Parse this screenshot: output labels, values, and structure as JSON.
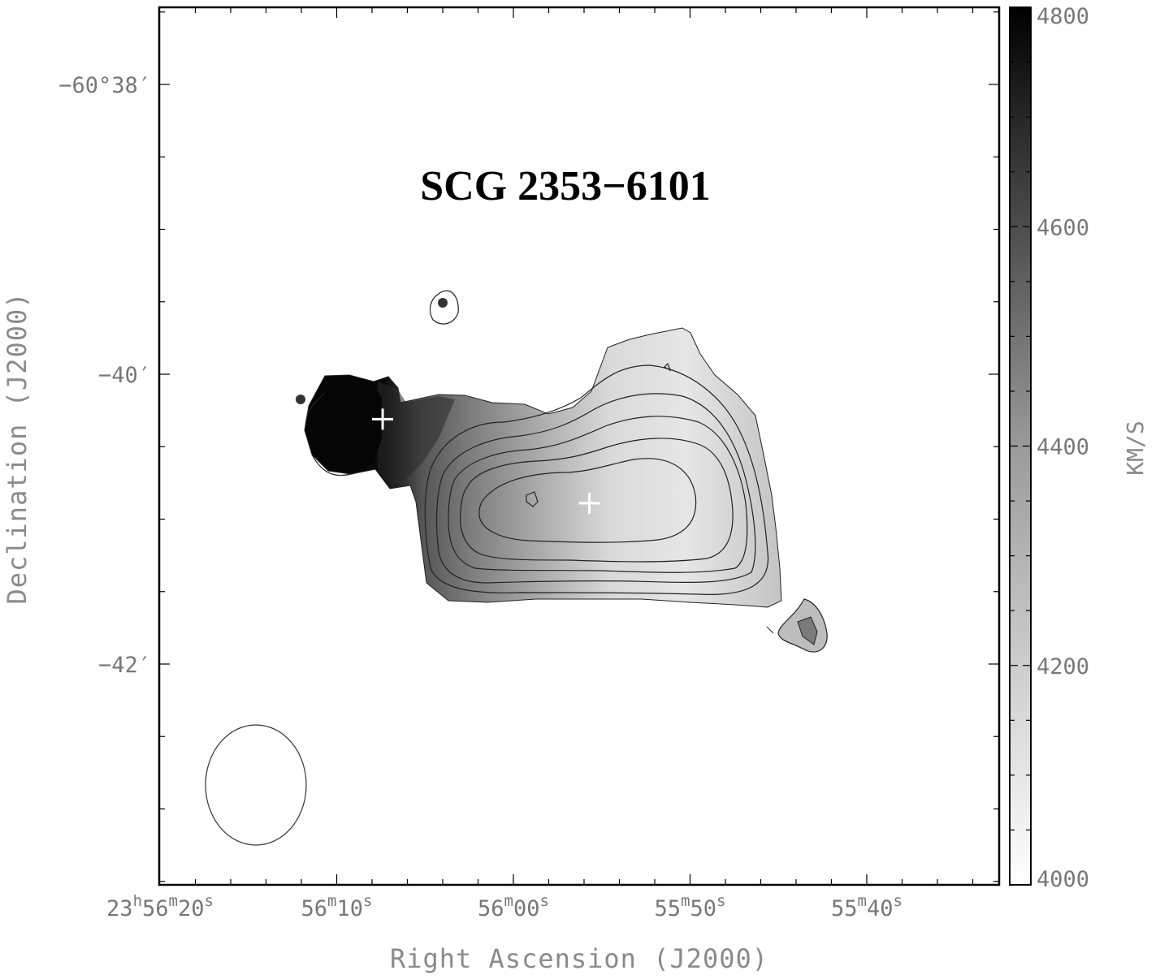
{
  "chart_data": {
    "type": "heatmap",
    "title": "SCG 2353−6101",
    "xlabel": "Right Ascension (J2000)",
    "ylabel": "Declination (J2000)",
    "x_ticks": [
      {
        "h": "23",
        "m": "56",
        "s": "20",
        "sec": 20,
        "full": true
      },
      {
        "m": "56",
        "s": "10",
        "sec": 10
      },
      {
        "m": "56",
        "s": "00",
        "sec": 0
      },
      {
        "m": "55",
        "s": "50",
        "sec": -10
      },
      {
        "m": "55",
        "s": "40",
        "sec": -20
      }
    ],
    "y_ticks": [
      {
        "label": "−60°38′",
        "arcmin": -38
      },
      {
        "label": "−40′",
        "arcmin": -40
      },
      {
        "label": "−42′",
        "arcmin": -42
      }
    ],
    "colorbar": {
      "label": "KM/S",
      "min": 4000,
      "max": 4800,
      "ticks": [
        4000,
        4200,
        4400,
        4600,
        4800
      ]
    },
    "markers": [
      {
        "name": "optical-center-1",
        "ra_sec": 7.4,
        "dec_arcmin": -40.31
      },
      {
        "name": "optical-center-2",
        "ra_sec": -4.3,
        "dec_arcmin": -40.89
      }
    ]
  }
}
